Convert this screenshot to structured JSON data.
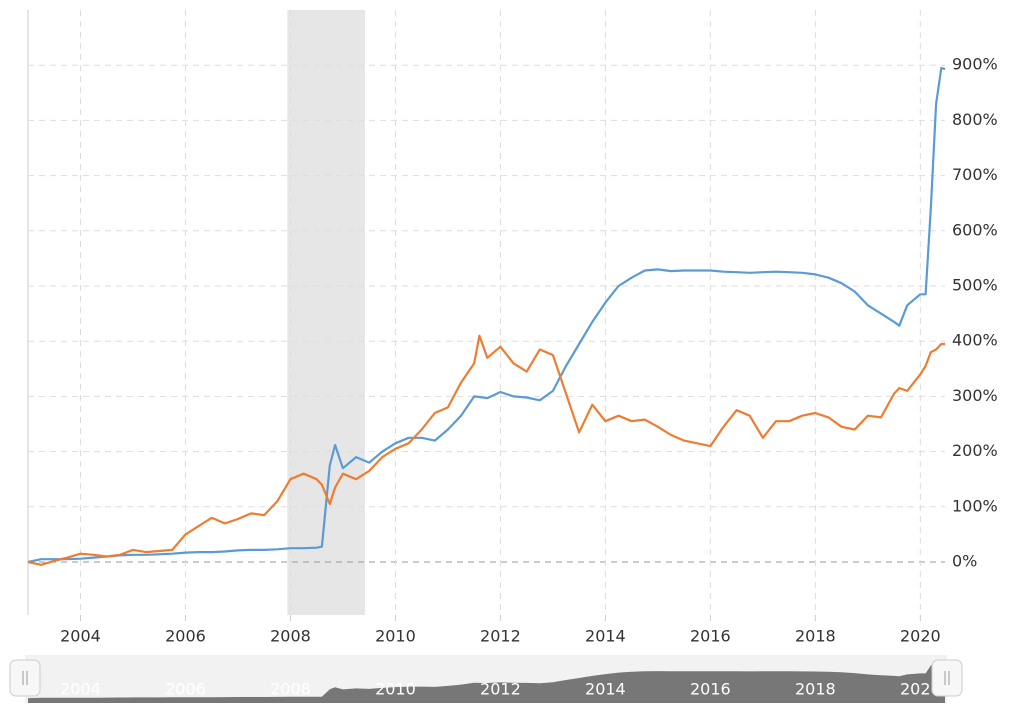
{
  "chart_data": {
    "type": "line",
    "x": [
      2003,
      2003.25,
      2003.5,
      2003.75,
      2004,
      2004.25,
      2004.5,
      2004.75,
      2005,
      2005.25,
      2005.5,
      2005.75,
      2006,
      2006.25,
      2006.5,
      2006.75,
      2007,
      2007.25,
      2007.5,
      2007.75,
      2008,
      2008.25,
      2008.5,
      2008.6,
      2008.75,
      2008.85,
      2009,
      2009.25,
      2009.5,
      2009.75,
      2010,
      2010.25,
      2010.5,
      2010.75,
      2011,
      2011.25,
      2011.5,
      2011.6,
      2011.75,
      2012,
      2012.25,
      2012.5,
      2012.75,
      2013,
      2013.25,
      2013.5,
      2013.75,
      2014,
      2014.25,
      2014.5,
      2014.75,
      2015,
      2015.25,
      2015.5,
      2015.75,
      2016,
      2016.25,
      2016.5,
      2016.75,
      2017,
      2017.25,
      2017.5,
      2017.75,
      2018,
      2018.25,
      2018.5,
      2018.75,
      2019,
      2019.25,
      2019.5,
      2019.6,
      2019.75,
      2020,
      2020.1,
      2020.2,
      2020.3,
      2020.4,
      2020.47
    ],
    "series": [
      {
        "color": "#5b9bd5",
        "values": [
          0,
          5,
          5,
          5,
          6,
          8,
          10,
          12,
          13,
          13,
          14,
          15,
          17,
          18,
          18,
          19,
          21,
          22,
          22,
          23,
          25,
          25,
          26,
          28,
          175,
          212,
          170,
          190,
          180,
          200,
          215,
          225,
          225,
          220,
          240,
          265,
          300,
          299,
          297,
          308,
          300,
          298,
          293,
          310,
          355,
          395,
          435,
          470,
          500,
          515,
          528,
          530,
          527,
          528,
          528,
          528,
          526,
          525,
          524,
          525,
          526,
          525,
          524,
          521,
          515,
          505,
          490,
          465,
          450,
          435,
          428,
          465,
          485,
          485,
          640,
          830,
          895,
          893
        ]
      },
      {
        "color": "#ed7d31",
        "values": [
          0,
          -5,
          2,
          8,
          15,
          13,
          10,
          13,
          22,
          18,
          20,
          22,
          50,
          65,
          80,
          70,
          78,
          88,
          85,
          110,
          150,
          160,
          150,
          140,
          105,
          135,
          160,
          150,
          165,
          190,
          205,
          215,
          240,
          270,
          280,
          325,
          360,
          410,
          370,
          390,
          360,
          345,
          385,
          375,
          305,
          235,
          285,
          255,
          265,
          255,
          258,
          245,
          230,
          220,
          215,
          210,
          245,
          275,
          265,
          225,
          255,
          255,
          265,
          270,
          262,
          245,
          240,
          265,
          262,
          305,
          315,
          310,
          340,
          355,
          380,
          385,
          395,
          395
        ]
      }
    ],
    "shaded_regions": [
      [
        2007.94,
        2009.42
      ]
    ],
    "xlim": [
      2003,
      2020.47
    ],
    "xticks": [
      2004,
      2006,
      2008,
      2010,
      2012,
      2014,
      2016,
      2018,
      2020
    ],
    "ylim": [
      -96,
      1000
    ],
    "yticks": [
      {
        "value": 0,
        "label": "0%"
      },
      {
        "value": 100,
        "label": "100%"
      },
      {
        "value": 200,
        "label": "200%"
      },
      {
        "value": 300,
        "label": "300%"
      },
      {
        "value": 400,
        "label": "400%"
      },
      {
        "value": 500,
        "label": "500%"
      },
      {
        "value": 600,
        "label": "600%"
      },
      {
        "value": 700,
        "label": "700%"
      },
      {
        "value": 800,
        "label": "800%"
      },
      {
        "value": 900,
        "label": "900%"
      }
    ],
    "grid": true
  }
}
